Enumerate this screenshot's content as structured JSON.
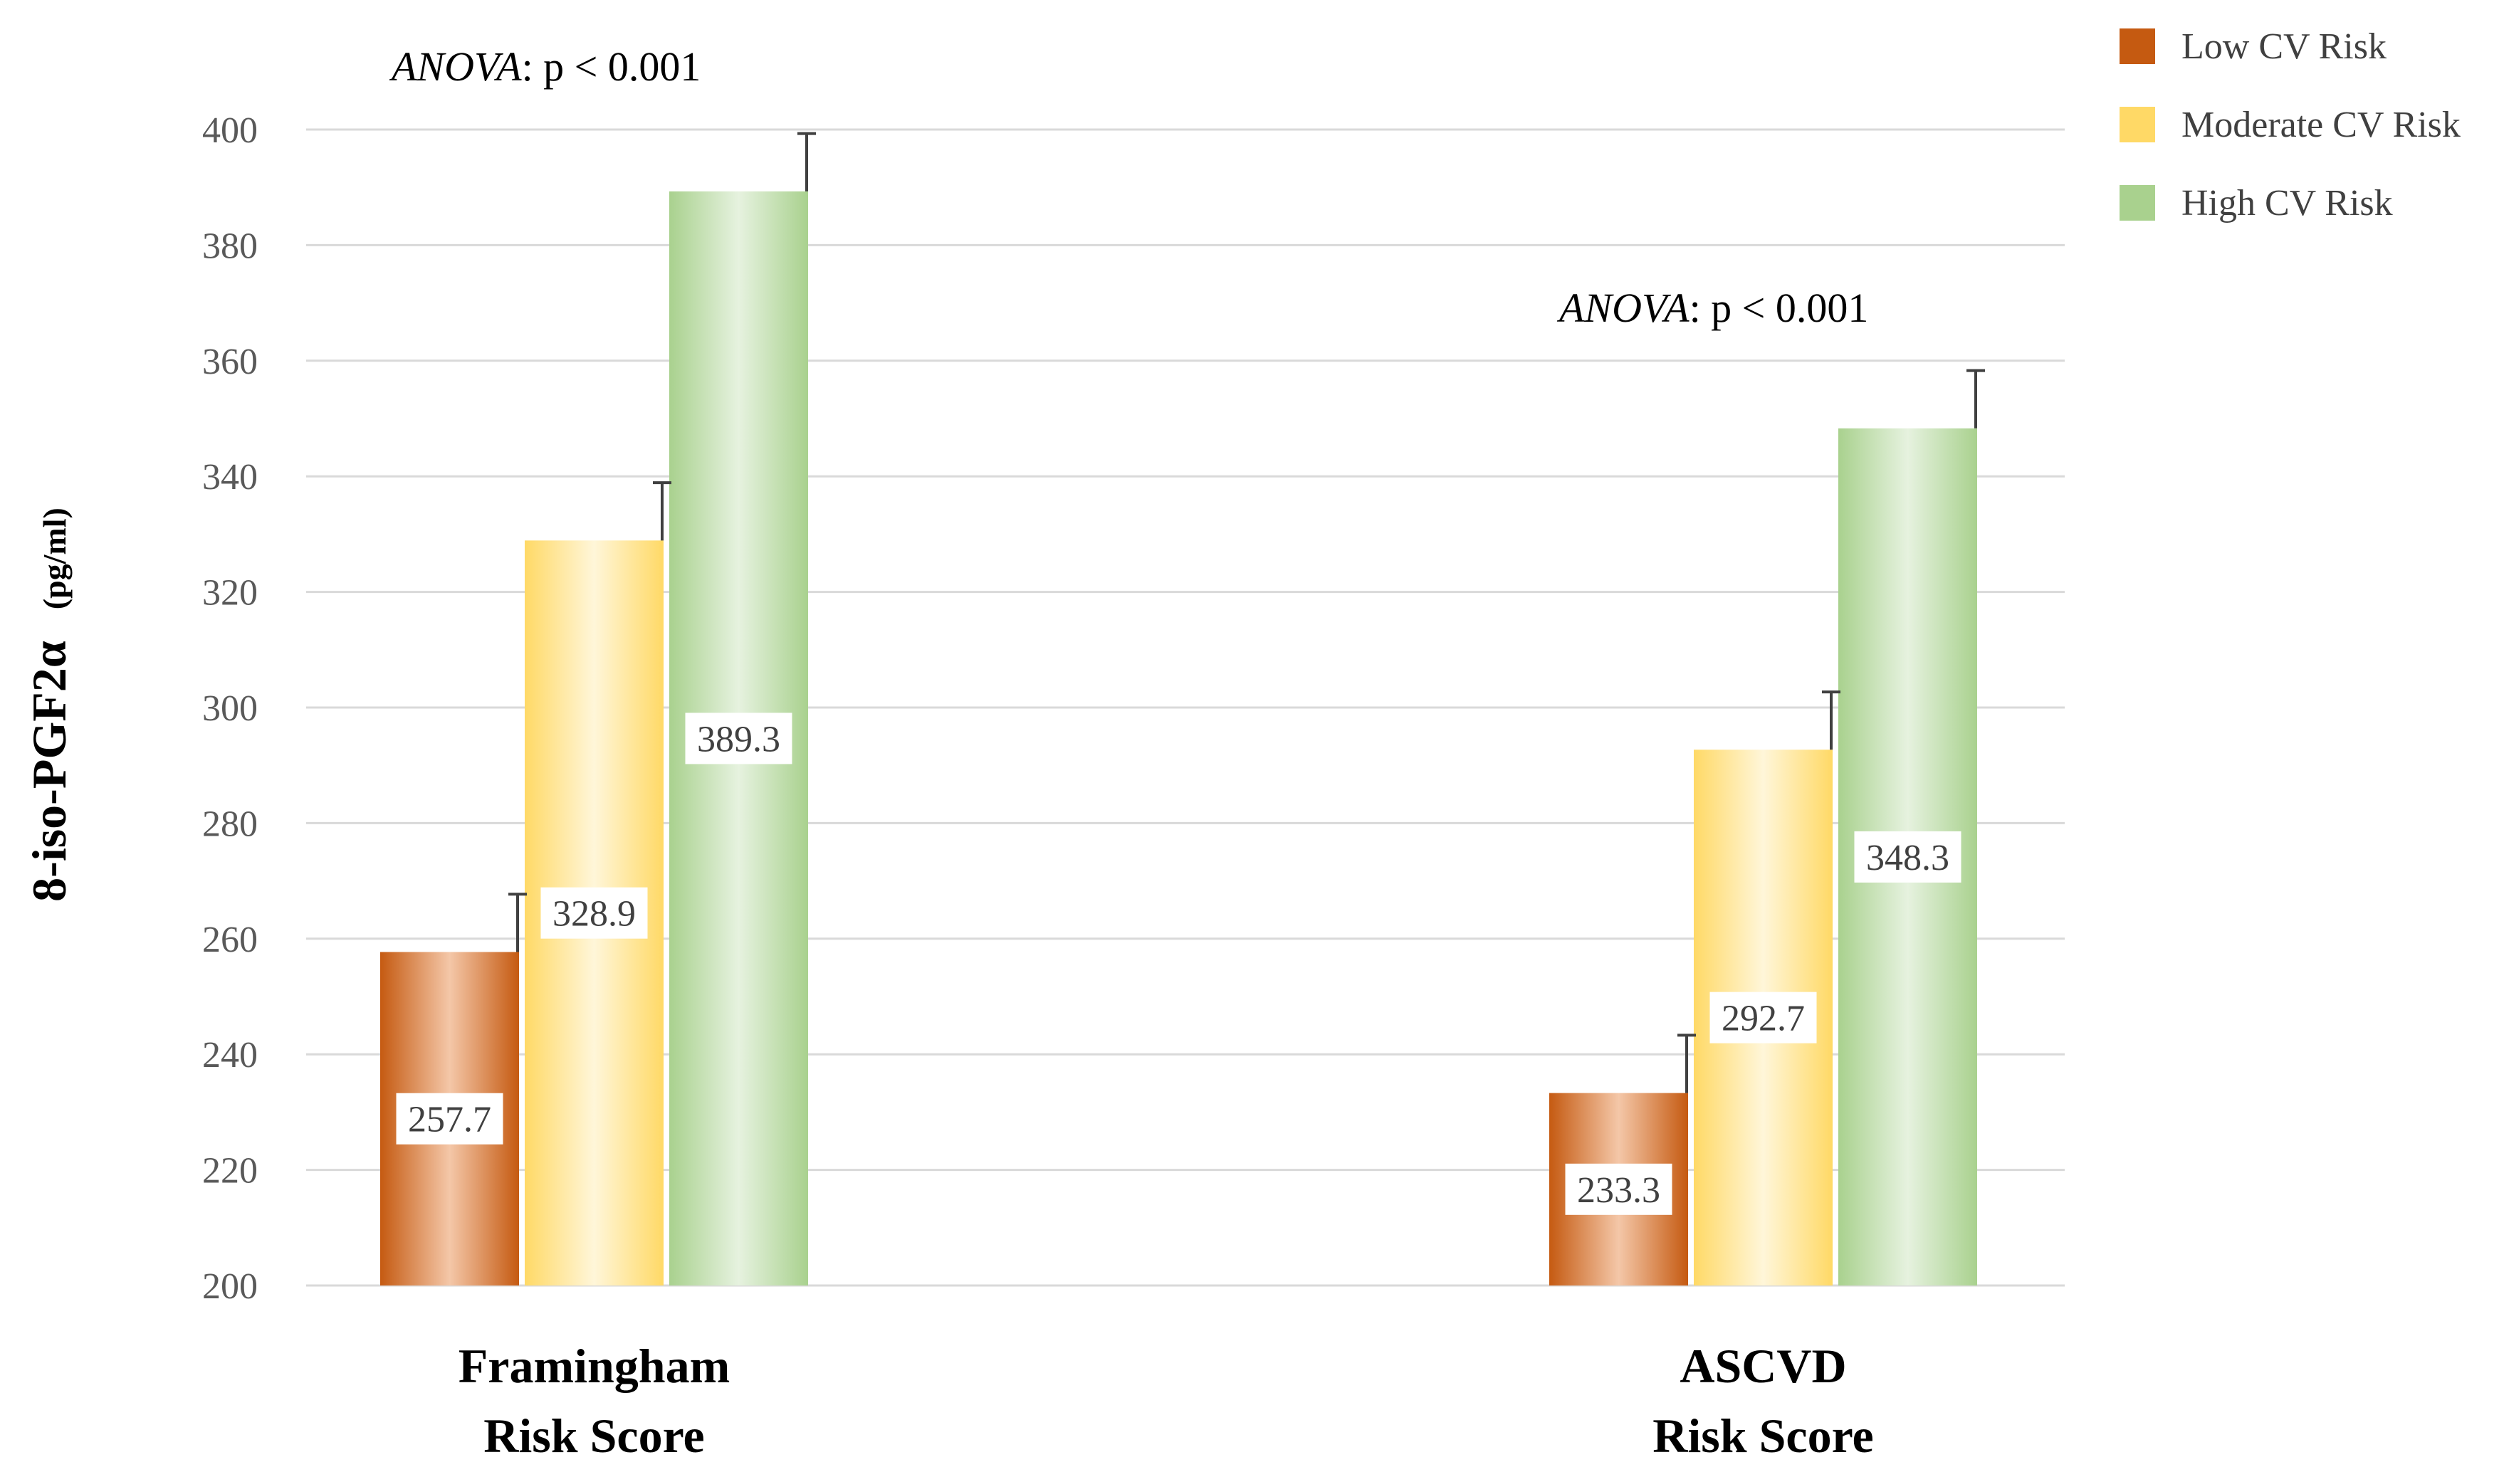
{
  "chart_data": {
    "type": "bar",
    "title": "",
    "ylabel_main": "8-iso-PGF2α",
    "ylabel_unit": "(pg/ml)",
    "ylim": [
      200,
      400
    ],
    "yticks": [
      200,
      220,
      240,
      260,
      280,
      300,
      320,
      340,
      360,
      380,
      400
    ],
    "grid": true,
    "legend_position": "top-right",
    "categories": [
      {
        "line1": "Framingham",
        "line2": "Risk Score",
        "annotation_prefix": "ANOVA",
        "annotation_text": ":  p < 0.001"
      },
      {
        "line1": "ASCVD",
        "line2": "Risk Score",
        "annotation_prefix": "ANOVA",
        "annotation_text": ":  p < 0.001"
      }
    ],
    "series": [
      {
        "name": "Low CV Risk",
        "color": "#C55A11",
        "values": [
          257.7,
          233.3
        ],
        "errors": [
          10,
          10
        ],
        "labels": [
          "257.7",
          "233.3"
        ]
      },
      {
        "name": "Moderate CV Risk",
        "color": "#FFD966",
        "values": [
          328.9,
          292.7
        ],
        "errors": [
          10,
          10
        ],
        "labels": [
          "328.9",
          "292.7"
        ]
      },
      {
        "name": "High CV Risk",
        "color": "#A9D18E",
        "values": [
          389.3,
          348.3
        ],
        "errors": [
          10,
          10
        ],
        "labels": [
          "389.3",
          "348.3"
        ]
      }
    ]
  }
}
